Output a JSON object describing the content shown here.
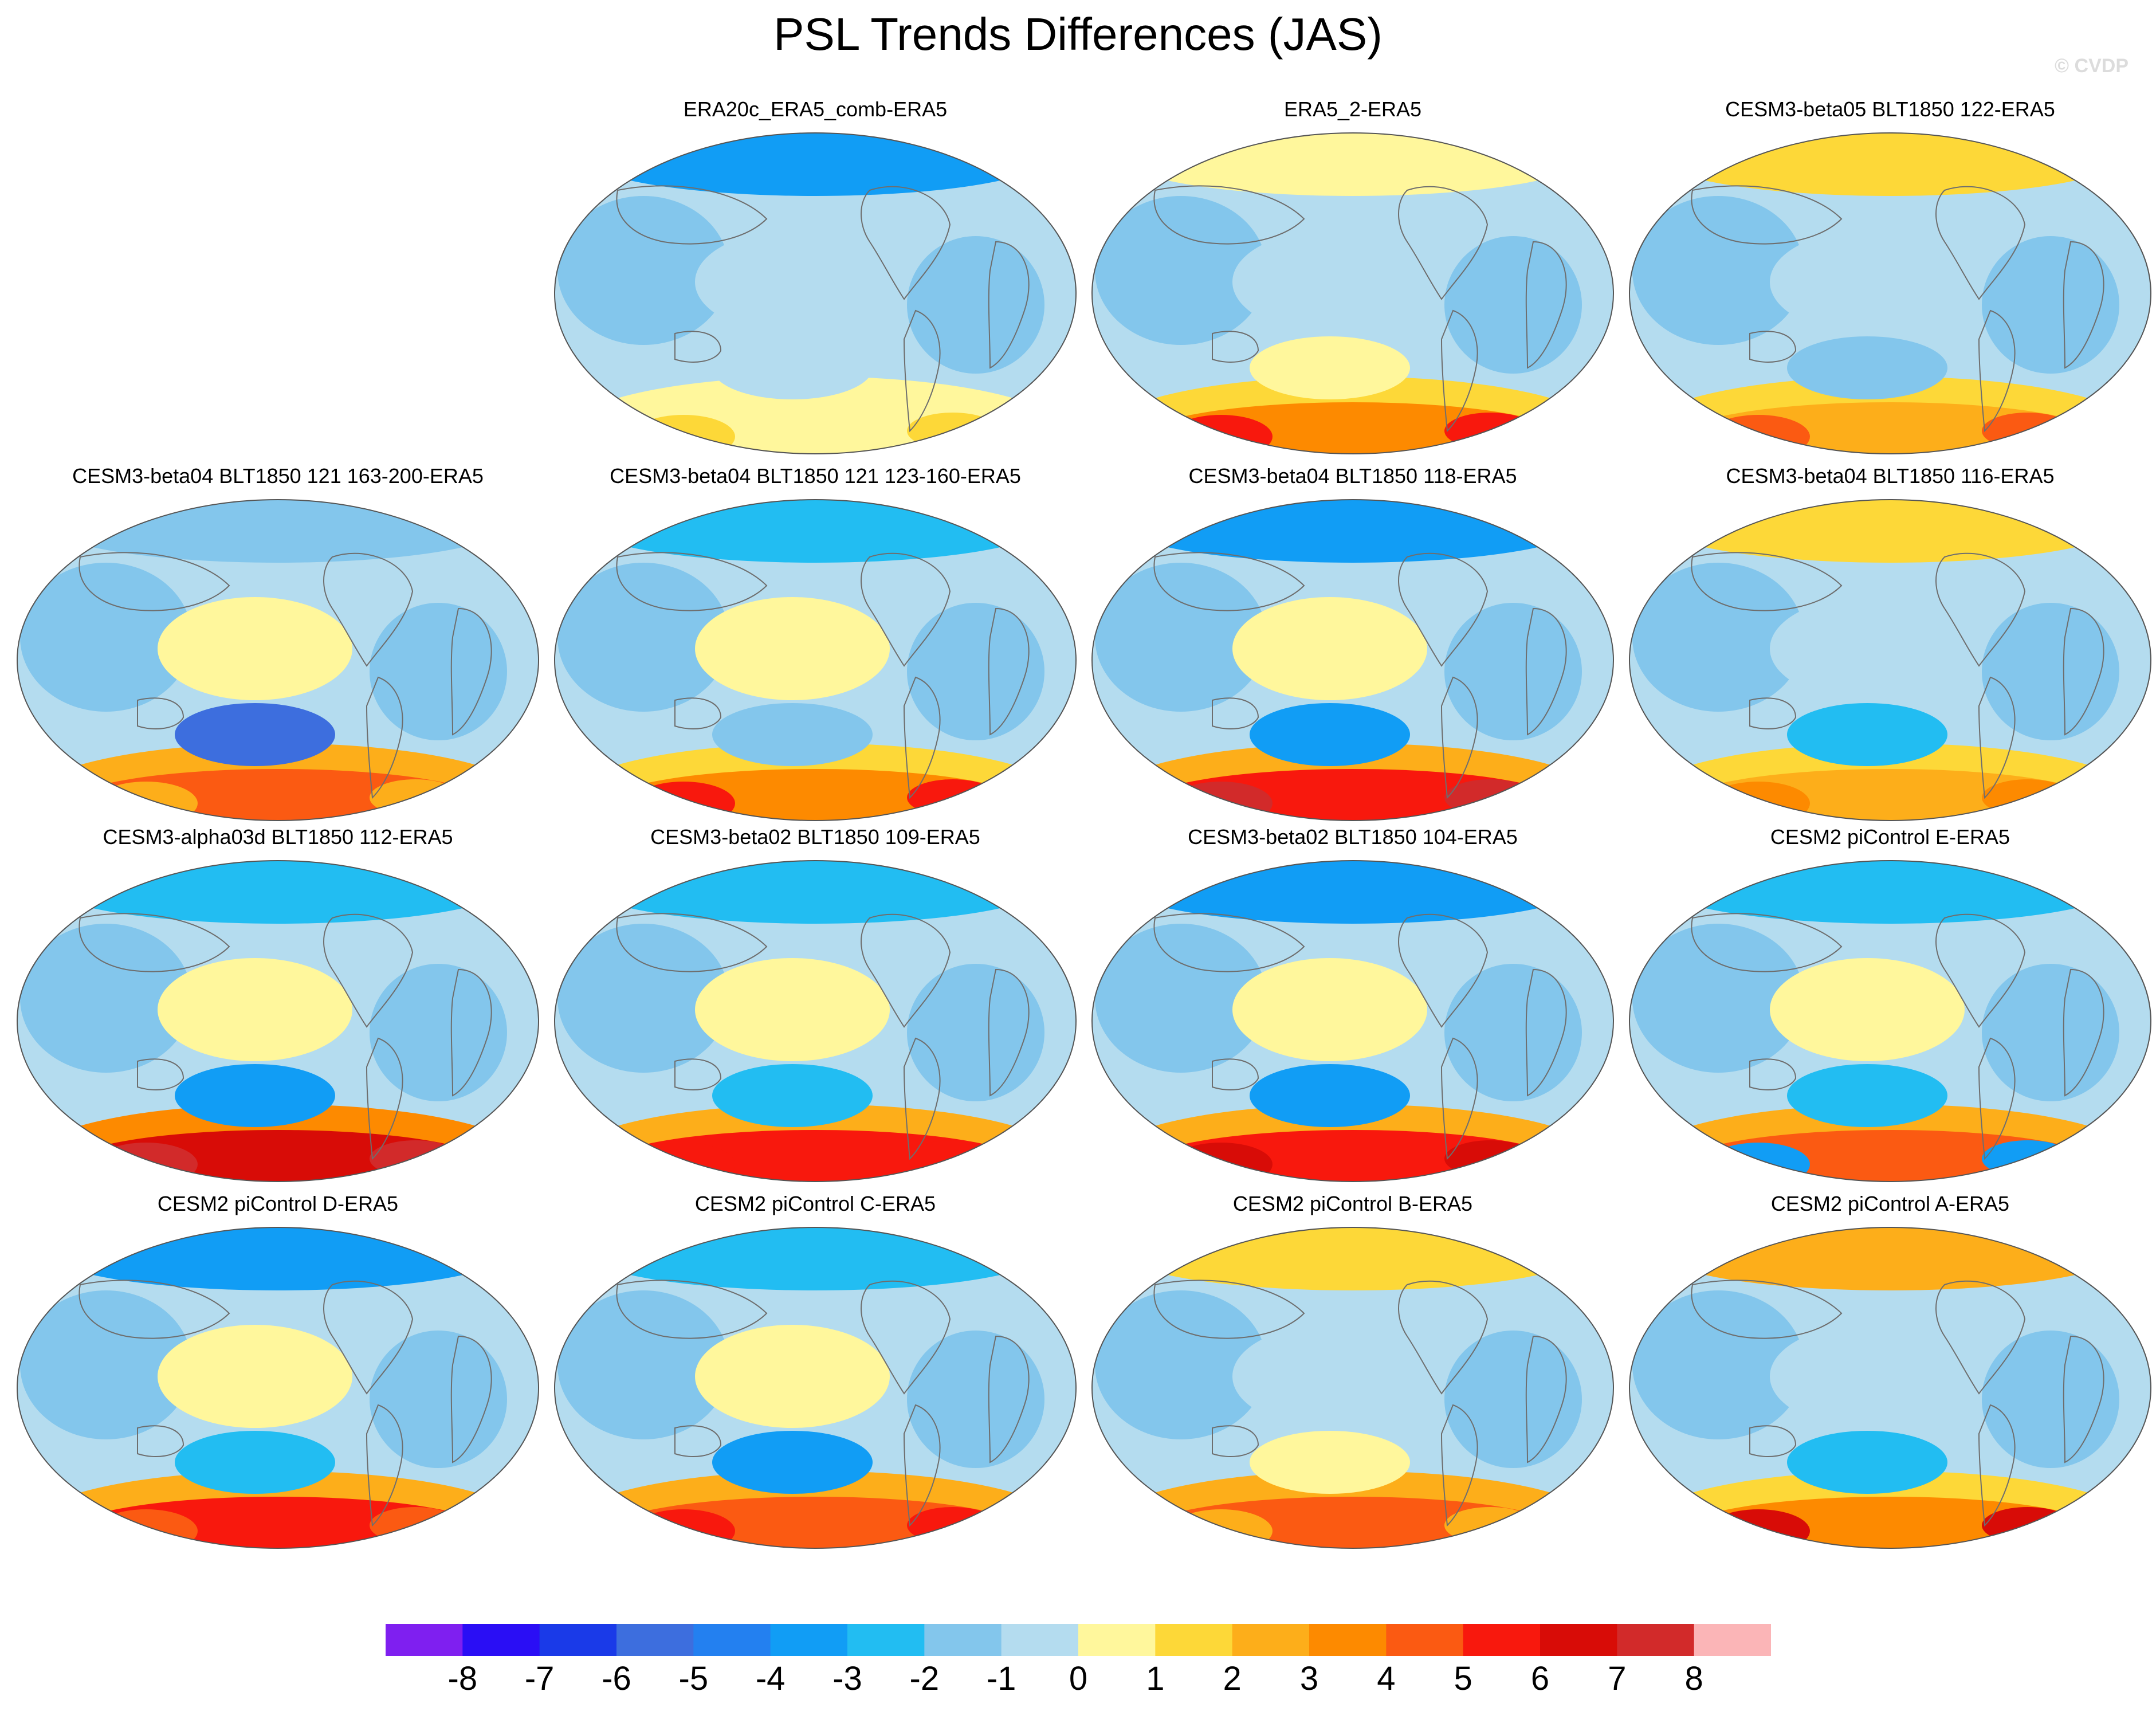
{
  "figure": {
    "title": "PSL Trends Differences (JAS)",
    "watermark": "© CVDP"
  },
  "panels": [
    {
      "title": "ERA20c_ERA5_comb-ERA5",
      "pattern": [
        -3,
        -2,
        0,
        1,
        2
      ]
    },
    {
      "title": "ERA5_2-ERA5",
      "pattern": [
        1,
        -1,
        1,
        4,
        6
      ]
    },
    {
      "title": "CESM3-beta05 BLT1850 122-ERA5",
      "pattern": [
        2,
        -1,
        -1,
        3,
        5
      ]
    },
    {
      "title": "CESM3-beta04 BLT1850 121 163-200-ERA5",
      "pattern": [
        -1,
        1,
        -5,
        5,
        3
      ]
    },
    {
      "title": "CESM3-beta04 BLT1850 121 123-160-ERA5",
      "pattern": [
        -2,
        1,
        -1,
        4,
        6
      ]
    },
    {
      "title": "CESM3-beta04 BLT1850 118-ERA5",
      "pattern": [
        -3,
        0,
        -3,
        6,
        8
      ]
    },
    {
      "title": "CESM3-beta04 BLT1850 116-ERA5",
      "pattern": [
        2,
        -2,
        -2,
        3,
        4
      ]
    },
    {
      "title": "CESM3-alpha03d BLT1850 112-ERA5",
      "pattern": [
        -2,
        1,
        -3,
        7,
        8
      ]
    },
    {
      "title": "CESM3-beta02 BLT1850 109-ERA5",
      "pattern": [
        -2,
        1,
        -2,
        6,
        6
      ]
    },
    {
      "title": "CESM3-beta02 BLT1850 104-ERA5",
      "pattern": [
        -3,
        1,
        -3,
        6,
        7
      ]
    },
    {
      "title": "CESM2 piControl E-ERA5",
      "pattern": [
        -2,
        1,
        -2,
        5,
        -3
      ]
    },
    {
      "title": "CESM2 piControl D-ERA5",
      "pattern": [
        -3,
        1,
        -2,
        6,
        5
      ]
    },
    {
      "title": "CESM2 piControl C-ERA5",
      "pattern": [
        -2,
        1,
        -3,
        5,
        6
      ]
    },
    {
      "title": "CESM2 piControl B-ERA5",
      "pattern": [
        2,
        -1,
        1,
        5,
        3
      ]
    },
    {
      "title": "CESM2 piControl A-ERA5",
      "pattern": [
        3,
        -1,
        -2,
        4,
        7
      ]
    }
  ],
  "colorbar": {
    "labels": [
      "-8",
      "-7",
      "-6",
      "-5",
      "-4",
      "-3",
      "-2",
      "-1",
      "0",
      "1",
      "2",
      "3",
      "4",
      "5",
      "6",
      "7",
      "8"
    ],
    "colors": [
      "#7f1ff0",
      "#2a0ef5",
      "#1a3ae8",
      "#3d6ede",
      "#2380f0",
      "#119df5",
      "#22bdf2",
      "#83c6ec",
      "#b4dcef",
      "#fff79c",
      "#fdd838",
      "#fdae1a",
      "#fd8a00",
      "#fb5a12",
      "#f8180d",
      "#d80c07",
      "#d22a2a",
      "#fbb5b7"
    ]
  }
}
